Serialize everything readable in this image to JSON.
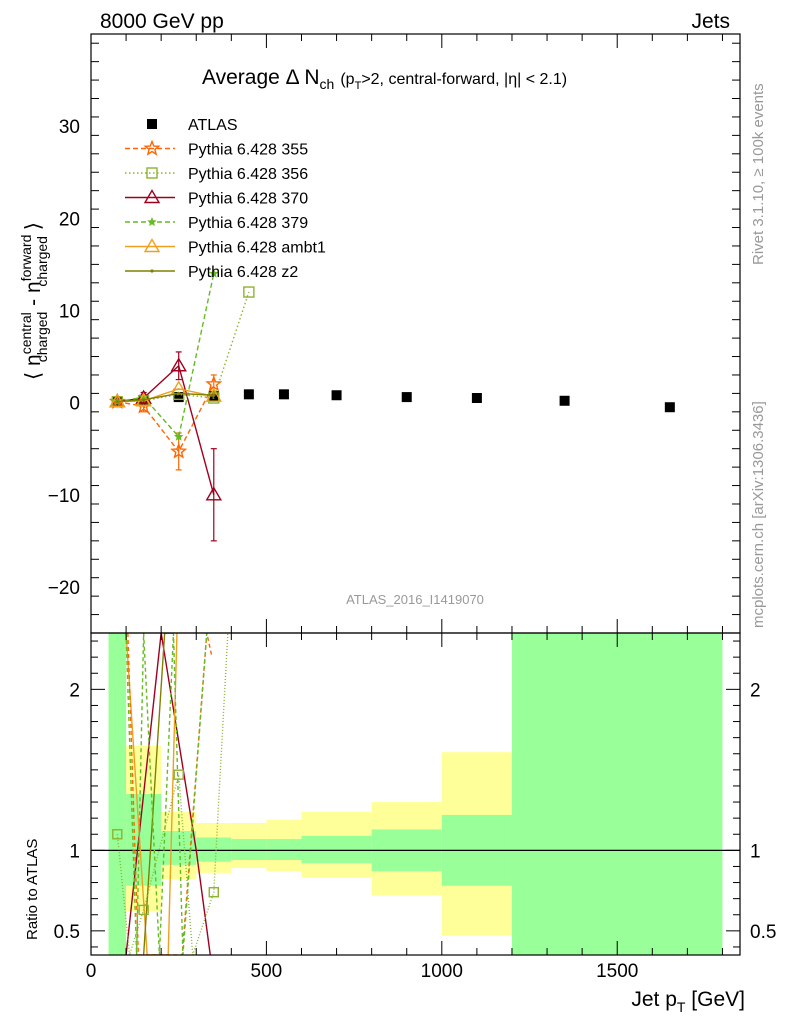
{
  "chart_data": {
    "type": "scatter",
    "header_left": "8000 GeV pp",
    "header_right": "Jets",
    "title": {
      "main": "Average Δ N",
      "main_sub": "ch",
      "open": "(p",
      "open_sub": "T",
      "rest": ">2, central-forward, |η| < 2.1)"
    },
    "ylabel_main": "⟨ n",
    "ylabel_central": "central",
    "ylabel_central_sub": "charged",
    "ylabel_minus": " - n",
    "ylabel_forward": "forward",
    "ylabel_forward_sub": "charged",
    "ylabel_close": " ⟩",
    "ratio_ylabel": "Ratio to ATLAS",
    "xlabel_main": "Jet p",
    "xlabel_sub": "T",
    "xlabel_unit": " [GeV]",
    "watermark": "ATLAS_2016_I1419070",
    "side_top": "Rivet 3.1.10, ≥ 100k events",
    "side_bottom": "mcplots.cern.ch [arXiv:1306.3436]",
    "xlim": [
      0,
      1850
    ],
    "ylim_main": [
      -25,
      40
    ],
    "ylim_ratio": [
      0.35,
      2.35
    ],
    "x_ticks": [
      0,
      500,
      1000,
      1500
    ],
    "y_ticks_main": [
      -20,
      -10,
      0,
      10,
      20,
      30
    ],
    "y_ticks_ratio": [
      0.5,
      1,
      2
    ],
    "legend_position": "top-left",
    "series": [
      {
        "name": "ATLAS",
        "color": "#000000",
        "marker": "square-filled",
        "line": "none",
        "x": [
          75,
          150,
          250,
          350,
          450,
          550,
          700,
          900,
          1100,
          1350,
          1650
        ],
        "y": [
          0.1,
          0.3,
          0.6,
          0.7,
          0.9,
          0.9,
          0.8,
          0.6,
          0.5,
          0.2,
          -0.5
        ]
      },
      {
        "name": "Pythia 6.428 355",
        "color": "#ff6600",
        "marker": "star-open",
        "line": "dashed",
        "x": [
          75,
          150,
          250,
          350
        ],
        "y": [
          0.1,
          -0.4,
          -5.3,
          2.0
        ],
        "err": [
          0.3,
          0.6,
          2.0,
          1.0
        ]
      },
      {
        "name": "Pythia 6.428 356",
        "color": "#8db32f",
        "marker": "square-open",
        "line": "dotted",
        "x": [
          75,
          150,
          250,
          350,
          450
        ],
        "y": [
          0.1,
          0.2,
          0.9,
          0.5,
          12.0
        ]
      },
      {
        "name": "Pythia 6.428 370",
        "color": "#a0001e",
        "marker": "triangle-open",
        "line": "solid",
        "x": [
          75,
          150,
          250,
          350
        ],
        "y": [
          0.1,
          0.5,
          4.0,
          -10.0
        ],
        "err": [
          0.3,
          0.6,
          1.5,
          5.0
        ]
      },
      {
        "name": "Pythia 6.428 379",
        "color": "#66bb22",
        "marker": "star-filled",
        "line": "dashed",
        "x": [
          75,
          150,
          250,
          350
        ],
        "y": [
          0.1,
          0.6,
          -3.7,
          14.0
        ]
      },
      {
        "name": "Pythia 6.428 ambt1",
        "color": "#f0a020",
        "marker": "triangle-open",
        "line": "solid",
        "x": [
          75,
          150,
          250,
          350
        ],
        "y": [
          0.1,
          0.2,
          1.5,
          0.7
        ]
      },
      {
        "name": "Pythia 6.428 z2",
        "color": "#808000",
        "marker": "dot",
        "line": "solid",
        "x": [
          75,
          150,
          250,
          350
        ],
        "y": [
          0.1,
          0.3,
          1.0,
          0.8
        ]
      }
    ],
    "ratio_bands": [
      {
        "x0": 50,
        "x1": 100,
        "stat": [
          0.35,
          2.35
        ],
        "syst": [
          0.35,
          2.35
        ]
      },
      {
        "x0": 100,
        "x1": 200,
        "stat": [
          0.78,
          1.35
        ],
        "syst": [
          0.62,
          1.65
        ]
      },
      {
        "x0": 200,
        "x1": 300,
        "stat": [
          0.91,
          1.12
        ],
        "syst": [
          0.82,
          1.24
        ]
      },
      {
        "x0": 300,
        "x1": 400,
        "stat": [
          0.93,
          1.08
        ],
        "syst": [
          0.86,
          1.17
        ]
      },
      {
        "x0": 400,
        "x1": 500,
        "stat": [
          0.94,
          1.07
        ],
        "syst": [
          0.89,
          1.17
        ]
      },
      {
        "x0": 500,
        "x1": 600,
        "stat": [
          0.94,
          1.07
        ],
        "syst": [
          0.87,
          1.19
        ]
      },
      {
        "x0": 600,
        "x1": 800,
        "stat": [
          0.92,
          1.09
        ],
        "syst": [
          0.83,
          1.24
        ]
      },
      {
        "x0": 800,
        "x1": 1000,
        "stat": [
          0.87,
          1.13
        ],
        "syst": [
          0.72,
          1.3
        ]
      },
      {
        "x0": 1000,
        "x1": 1200,
        "stat": [
          0.78,
          1.22
        ],
        "syst": [
          0.47,
          1.61
        ]
      },
      {
        "x0": 1200,
        "x1": 1800,
        "stat": [
          0.35,
          2.35
        ],
        "syst": [
          0.35,
          2.35
        ]
      }
    ],
    "ratio_points_356": {
      "x": [
        75,
        150,
        250,
        350
      ],
      "y": [
        1.1,
        0.63,
        1.47,
        0.74
      ]
    },
    "ratio_lines": [
      {
        "color": "#a0001e",
        "dash": "",
        "x": [
          100,
          200,
          300,
          340
        ],
        "y": [
          0.35,
          2.35,
          1.0,
          0.35
        ]
      },
      {
        "color": "#f0a020",
        "dash": "",
        "x": [
          100,
          160,
          220,
          245
        ],
        "y": [
          2.35,
          0.35,
          0.35,
          2.35
        ]
      },
      {
        "color": "#808000",
        "dash": "",
        "x": [
          150,
          210,
          235
        ],
        "y": [
          0.35,
          2.35,
          2.35
        ]
      },
      {
        "color": "#ff6600",
        "dash": "4,3",
        "x": [
          105,
          135,
          240,
          260,
          330,
          345
        ],
        "y": [
          2.35,
          0.35,
          0.35,
          0.35,
          2.35,
          2.2
        ]
      },
      {
        "color": "#66bb22",
        "dash": "4,3",
        "x": [
          100,
          130,
          150,
          195,
          235,
          262,
          330
        ],
        "y": [
          2.35,
          0.35,
          2.35,
          0.35,
          2.35,
          0.35,
          2.35
        ]
      },
      {
        "color": "#8db32f",
        "dash": "1,2",
        "x": [
          75,
          110,
          150,
          250,
          290,
          350,
          390
        ],
        "y": [
          1.1,
          0.35,
          0.63,
          1.47,
          0.35,
          0.74,
          2.35
        ]
      }
    ]
  }
}
